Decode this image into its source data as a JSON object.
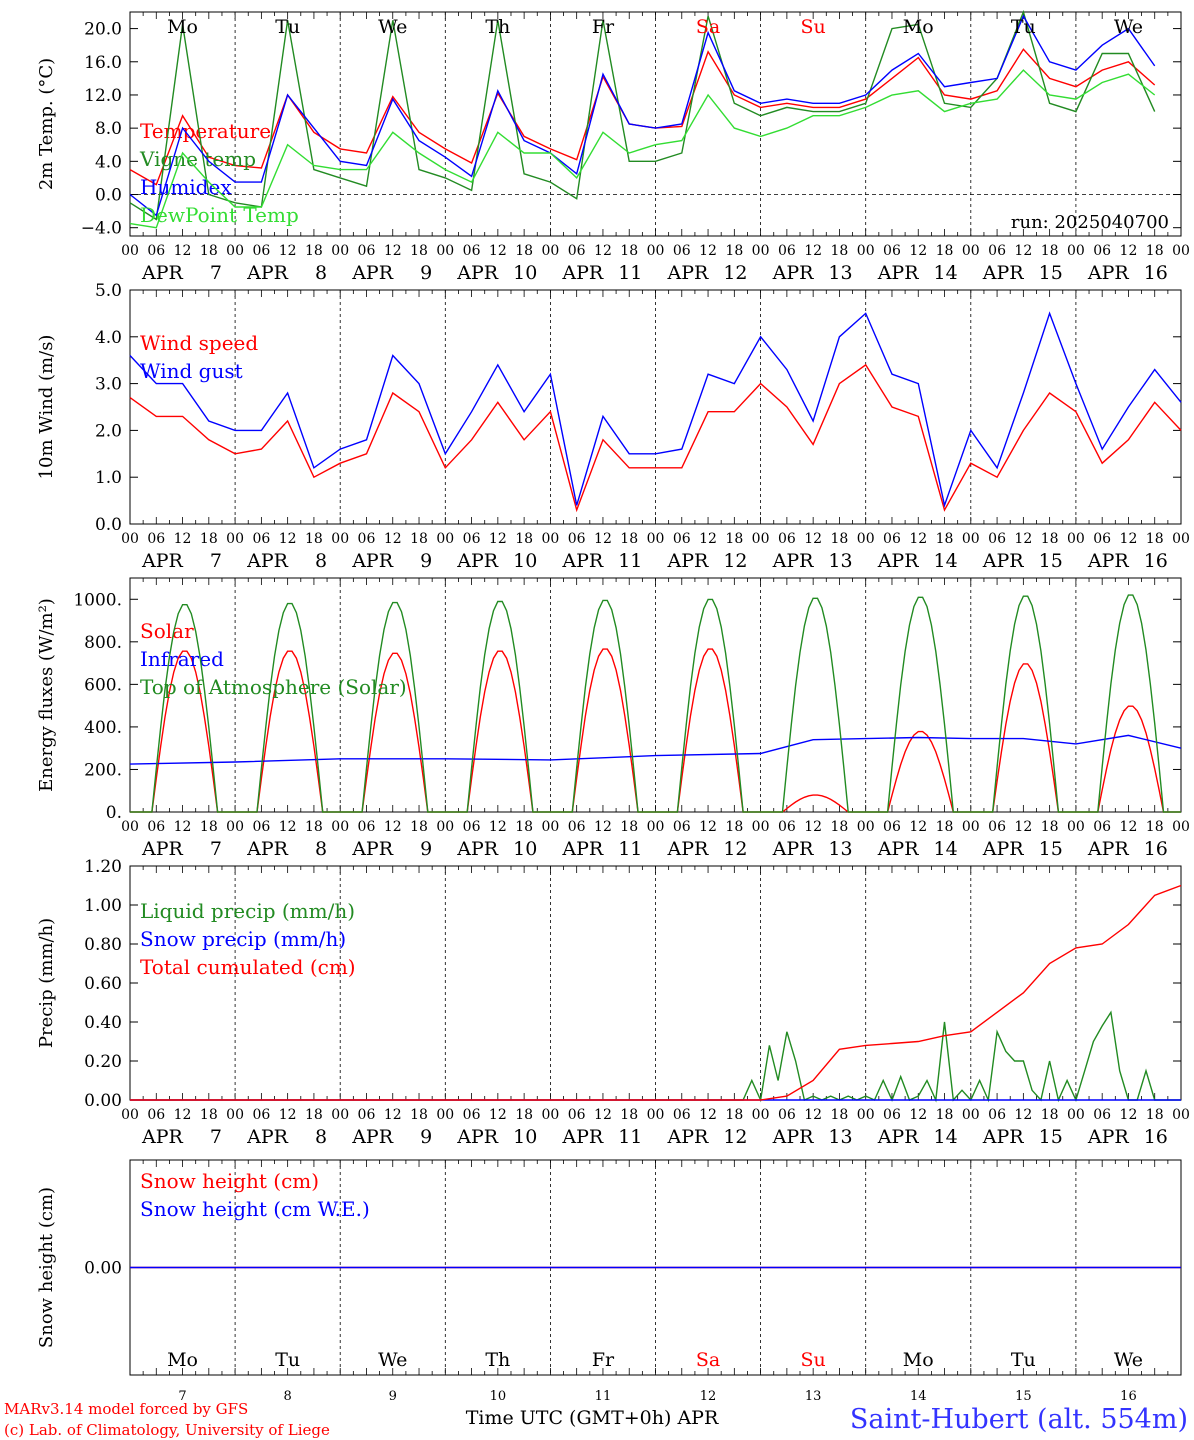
{
  "colors": {
    "red": "#ff0000",
    "green": "#228b22",
    "blue": "#0000ff",
    "lime": "#33dd33",
    "weekday": "#000000",
    "weekend": "#ff0000",
    "station": "#3333ff"
  },
  "time_axis": {
    "hour_ticks": [
      "00",
      "06",
      "12",
      "18"
    ],
    "final_tick": "00",
    "days": [
      "7",
      "8",
      "9",
      "10",
      "11",
      "12",
      "13",
      "14",
      "15",
      "16"
    ],
    "month": "APR",
    "weekdays": [
      "Mo",
      "Tu",
      "We",
      "Th",
      "Fr",
      "Sa",
      "Su",
      "Mo",
      "Tu",
      "We"
    ],
    "weekend_index": [
      5,
      6
    ],
    "footer_label": "Time UTC (GMT+0h) APR"
  },
  "footer": {
    "model": "MARv3.14 model forced by GFS",
    "lab": "(c) Lab. of Climatology, University of Liege",
    "station": "Saint-Hubert (alt. 554m)"
  },
  "chart_data": [
    {
      "type": "line",
      "ylabel": "2m Temp. (°C)",
      "ylim": [
        -5,
        22
      ],
      "yticks": [
        -4,
        0,
        4,
        8,
        12,
        16,
        20
      ],
      "ytick_labels": [
        "−4.0",
        "0.0",
        "4.0",
        "8.0",
        "12.0",
        "16.0",
        "20.0"
      ],
      "zero_line": true,
      "run_label": "run: 2025040700",
      "x_unit": "hours since APR 7 00 UTC",
      "series": [
        {
          "name": "Temperature",
          "color": "red",
          "x": [
            0,
            6,
            12,
            18,
            24,
            30,
            36,
            42,
            48,
            54,
            60,
            66,
            72,
            78,
            84,
            90,
            96,
            102,
            108,
            114,
            120,
            126,
            132,
            138,
            144,
            150,
            156,
            162,
            168,
            174,
            180,
            186,
            192,
            198,
            204,
            210,
            216,
            222,
            228,
            234
          ],
          "values": [
            3,
            1.2,
            9.5,
            4.5,
            3.5,
            3.2,
            12,
            7.5,
            5.5,
            5,
            11.8,
            7.5,
            5.5,
            3.8,
            12.2,
            7,
            5.5,
            4.2,
            14.2,
            8.5,
            8,
            8.2,
            17.2,
            12,
            10.5,
            11,
            10.5,
            10.5,
            11.5,
            14,
            16.5,
            12,
            11.5,
            12.5,
            17.5,
            14,
            13,
            15,
            16,
            13.2
          ]
        },
        {
          "name": "Vigne temp",
          "color": "green",
          "x": [
            0,
            6,
            12,
            18,
            24,
            30,
            36,
            42,
            48,
            54,
            60,
            66,
            72,
            78,
            84,
            90,
            96,
            102,
            108,
            114,
            120,
            126,
            132,
            138,
            144,
            150,
            156,
            162,
            168,
            174,
            180,
            186,
            192,
            198,
            204,
            210,
            216,
            222,
            228,
            234
          ],
          "values": [
            -1,
            -3,
            20.5,
            0,
            -1,
            -1.5,
            21,
            3,
            2,
            1,
            21,
            3,
            2,
            0.5,
            21,
            2.5,
            1.5,
            -0.5,
            21,
            4,
            4,
            5,
            21.5,
            11,
            9.5,
            10.5,
            10,
            10,
            11,
            20,
            20.5,
            11,
            10.5,
            14,
            22,
            11,
            10,
            17,
            17,
            10
          ]
        },
        {
          "name": "Humidex",
          "color": "blue",
          "x": [
            0,
            6,
            12,
            18,
            24,
            30,
            36,
            42,
            48,
            54,
            60,
            66,
            72,
            78,
            84,
            90,
            96,
            102,
            108,
            114,
            120,
            126,
            132,
            138,
            144,
            150,
            156,
            162,
            168,
            174,
            180,
            186,
            192,
            198,
            204,
            210,
            216,
            222,
            228,
            234
          ],
          "values": [
            0,
            -2.5,
            8,
            4,
            1.5,
            1.5,
            12,
            8,
            4,
            3.5,
            11.5,
            6.5,
            4.5,
            2.2,
            12.5,
            6.5,
            5,
            2.5,
            14.5,
            8.5,
            8,
            8.5,
            19.5,
            12.5,
            11,
            11.5,
            11,
            11,
            12,
            15,
            17,
            13,
            13.5,
            14,
            21.5,
            16,
            15,
            18,
            20,
            15.5
          ]
        },
        {
          "name": "DewPoint Temp",
          "color": "lime",
          "x": [
            0,
            6,
            12,
            18,
            24,
            30,
            36,
            42,
            48,
            54,
            60,
            66,
            72,
            78,
            84,
            90,
            96,
            102,
            108,
            114,
            120,
            126,
            132,
            138,
            144,
            150,
            156,
            162,
            168,
            174,
            180,
            186,
            192,
            198,
            204,
            210,
            216,
            222,
            228,
            234
          ],
          "values": [
            -3.5,
            -4,
            5,
            1.5,
            -1.5,
            -1.5,
            6,
            3.5,
            3,
            3,
            7.5,
            5,
            3,
            1.5,
            7.5,
            5,
            5,
            2,
            7.5,
            5,
            6,
            6.5,
            12,
            8,
            7,
            8,
            9.5,
            9.5,
            10.5,
            12,
            12.5,
            10,
            11,
            11.5,
            15,
            12,
            11.5,
            13.5,
            14.5,
            12
          ]
        }
      ]
    },
    {
      "type": "line",
      "ylabel": "10m Wind (m/s)",
      "ylim": [
        0,
        5
      ],
      "yticks": [
        0,
        1,
        2,
        3,
        4,
        5
      ],
      "ytick_labels": [
        "0.0",
        "1.0",
        "2.0",
        "3.0",
        "4.0",
        "5.0"
      ],
      "x_unit": "hours since APR 7 00 UTC",
      "series": [
        {
          "name": "Wind speed",
          "color": "red",
          "x": [
            0,
            6,
            12,
            18,
            24,
            30,
            36,
            42,
            48,
            54,
            60,
            66,
            72,
            78,
            84,
            90,
            96,
            102,
            108,
            114,
            120,
            126,
            132,
            138,
            144,
            150,
            156,
            162,
            168,
            174,
            180,
            186,
            192,
            198,
            204,
            210,
            216,
            222,
            228,
            234,
            240
          ],
          "values": [
            2.7,
            2.3,
            2.3,
            1.8,
            1.5,
            1.6,
            2.2,
            1,
            1.3,
            1.5,
            2.8,
            2.4,
            1.2,
            1.8,
            2.6,
            1.8,
            2.4,
            0.3,
            1.8,
            1.2,
            1.2,
            1.2,
            2.4,
            2.4,
            3,
            2.5,
            1.7,
            3,
            3.4,
            2.5,
            2.3,
            0.3,
            1.3,
            1,
            2,
            2.8,
            2.4,
            1.3,
            1.8,
            2.6,
            2
          ]
        },
        {
          "name": "Wind gust",
          "color": "blue",
          "x": [
            0,
            6,
            12,
            18,
            24,
            30,
            36,
            42,
            48,
            54,
            60,
            66,
            72,
            78,
            84,
            90,
            96,
            102,
            108,
            114,
            120,
            126,
            132,
            138,
            144,
            150,
            156,
            162,
            168,
            174,
            180,
            186,
            192,
            198,
            204,
            210,
            216,
            222,
            228,
            234,
            240
          ],
          "values": [
            3.6,
            3,
            3,
            2.2,
            2,
            2,
            2.8,
            1.2,
            1.6,
            1.8,
            3.6,
            3,
            1.5,
            2.4,
            3.4,
            2.4,
            3.2,
            0.4,
            2.3,
            1.5,
            1.5,
            1.6,
            3.2,
            3,
            4,
            3.3,
            2.2,
            4,
            4.5,
            3.2,
            3,
            0.4,
            2,
            1.2,
            2.8,
            4.5,
            3,
            1.6,
            2.5,
            3.3,
            2.6
          ]
        }
      ]
    },
    {
      "type": "line",
      "ylabel": "Energy fluxes (W/m²)",
      "ylim": [
        0,
        1100
      ],
      "yticks": [
        0,
        200,
        400,
        600,
        800,
        1000
      ],
      "ytick_labels": [
        "0.",
        "200.",
        "400.",
        "600.",
        "800.",
        "1000."
      ],
      "x_unit": "hours since APR 7 00 UTC",
      "series": [
        {
          "name": "Solar",
          "color": "red",
          "peaks": [
            760,
            760,
            750,
            760,
            770,
            770,
            80,
            380,
            700,
            500
          ]
        },
        {
          "name": "Infrared",
          "color": "blue",
          "x": [
            0,
            24,
            48,
            72,
            96,
            120,
            144,
            156,
            168,
            180,
            192,
            204,
            216,
            228,
            240
          ],
          "values": [
            225,
            235,
            250,
            250,
            245,
            265,
            275,
            340,
            345,
            350,
            345,
            345,
            320,
            360,
            300
          ]
        },
        {
          "name": "Top of Atmosphere (Solar)",
          "color": "green",
          "peaks": [
            980,
            985,
            990,
            995,
            1000,
            1005,
            1010,
            1015,
            1020,
            1025
          ]
        }
      ]
    },
    {
      "type": "line",
      "ylabel": "Precip (mm/h)",
      "ylim": [
        0,
        1.2
      ],
      "yticks": [
        0,
        0.2,
        0.4,
        0.6,
        0.8,
        1.0,
        1.2
      ],
      "ytick_labels": [
        "0.00",
        "0.20",
        "0.40",
        "0.60",
        "0.80",
        "1.00",
        "1.20"
      ],
      "x_unit": "hours since APR 7 00 UTC",
      "series": [
        {
          "name": "Liquid precip (mm/h)",
          "color": "green",
          "x": [
            0,
            140,
            142,
            144,
            146,
            148,
            150,
            152,
            154,
            156,
            158,
            160,
            162,
            164,
            166,
            168,
            170,
            172,
            174,
            176,
            178,
            180,
            182,
            184,
            186,
            188,
            190,
            192,
            194,
            196,
            198,
            200,
            202,
            204,
            206,
            208,
            210,
            212,
            214,
            216,
            218,
            220,
            222,
            224,
            226,
            228,
            230,
            232,
            234,
            236,
            238,
            240
          ],
          "values": [
            0,
            0,
            0.1,
            0,
            0.28,
            0.1,
            0.35,
            0.2,
            0,
            0.02,
            0,
            0.02,
            0,
            0.02,
            0,
            0.02,
            0,
            0.1,
            0,
            0.12,
            0,
            0.02,
            0.1,
            0,
            0.4,
            0,
            0.05,
            0,
            0.1,
            0,
            0.35,
            0.25,
            0.2,
            0.2,
            0.05,
            0,
            0.2,
            0,
            0.1,
            0,
            0.15,
            0.3,
            0.38,
            0.45,
            0.15,
            0,
            0,
            0.15,
            0,
            0,
            0,
            0
          ]
        },
        {
          "name": "Snow precip (mm/h)",
          "color": "blue",
          "x": [
            0,
            240
          ],
          "values": [
            0,
            0
          ]
        },
        {
          "name": "Total cumulated (cm)",
          "color": "red",
          "x": [
            0,
            144,
            150,
            156,
            162,
            168,
            174,
            180,
            186,
            192,
            198,
            204,
            210,
            216,
            222,
            228,
            234,
            240
          ],
          "values": [
            0,
            0,
            0.02,
            0.1,
            0.26,
            0.28,
            0.29,
            0.3,
            0.33,
            0.35,
            0.45,
            0.55,
            0.7,
            0.78,
            0.8,
            0.9,
            1.05,
            1.1
          ]
        }
      ]
    },
    {
      "type": "line",
      "ylabel": "Snow height (cm)",
      "ylim": [
        -1,
        1
      ],
      "yticks": [
        0
      ],
      "ytick_labels": [
        "0.00"
      ],
      "x_unit": "hours since APR 7 00 UTC",
      "series": [
        {
          "name": "Snow height (cm)",
          "color": "red",
          "x": [
            0,
            240
          ],
          "values": [
            0,
            0
          ]
        },
        {
          "name": "Snow height (cm W.E.)",
          "color": "blue",
          "x": [
            0,
            240
          ],
          "values": [
            0,
            0
          ]
        }
      ]
    }
  ]
}
